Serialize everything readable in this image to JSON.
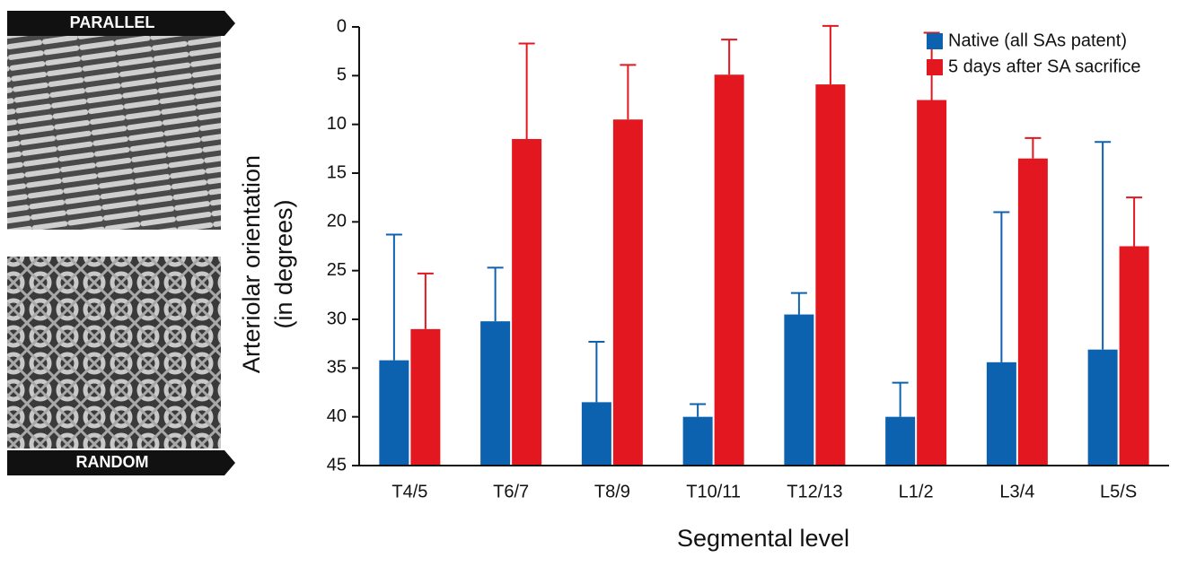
{
  "panels": [
    "PARALLEL",
    "RANDOM"
  ],
  "chart_data": {
    "type": "bar",
    "y_label": [
      "Arteriolar orientation",
      "(in degrees)"
    ],
    "x_label": "Segmental level",
    "categories": [
      "T4/5",
      "T6/7",
      "T8/9",
      "T10/11",
      "T12/13",
      "L1/2",
      "L3/4",
      "L5/S"
    ],
    "series": [
      {
        "name": "Native (all SAs patent)",
        "color": "#0d62b0",
        "values": [
          34.2,
          30.2,
          38.5,
          40,
          29.5,
          40,
          34.4,
          33.1
        ],
        "errors": [
          12.9,
          5.5,
          6.2,
          1.3,
          2.2,
          3.5,
          15.4,
          21.3
        ]
      },
      {
        "name": "5 days after SA sacrifice",
        "color": "#e3171f",
        "values": [
          31,
          11.5,
          9.5,
          4.9,
          5.9,
          7.5,
          13.5,
          22.5
        ],
        "errors": [
          5.7,
          9.8,
          5.6,
          3.6,
          6,
          6.9,
          2.1,
          5
        ]
      }
    ],
    "ylim": [
      0,
      45
    ],
    "y_inverted": true,
    "yticks": [
      0,
      5,
      10,
      15,
      20,
      25,
      30,
      35,
      40,
      45
    ],
    "legend": "top-right"
  }
}
